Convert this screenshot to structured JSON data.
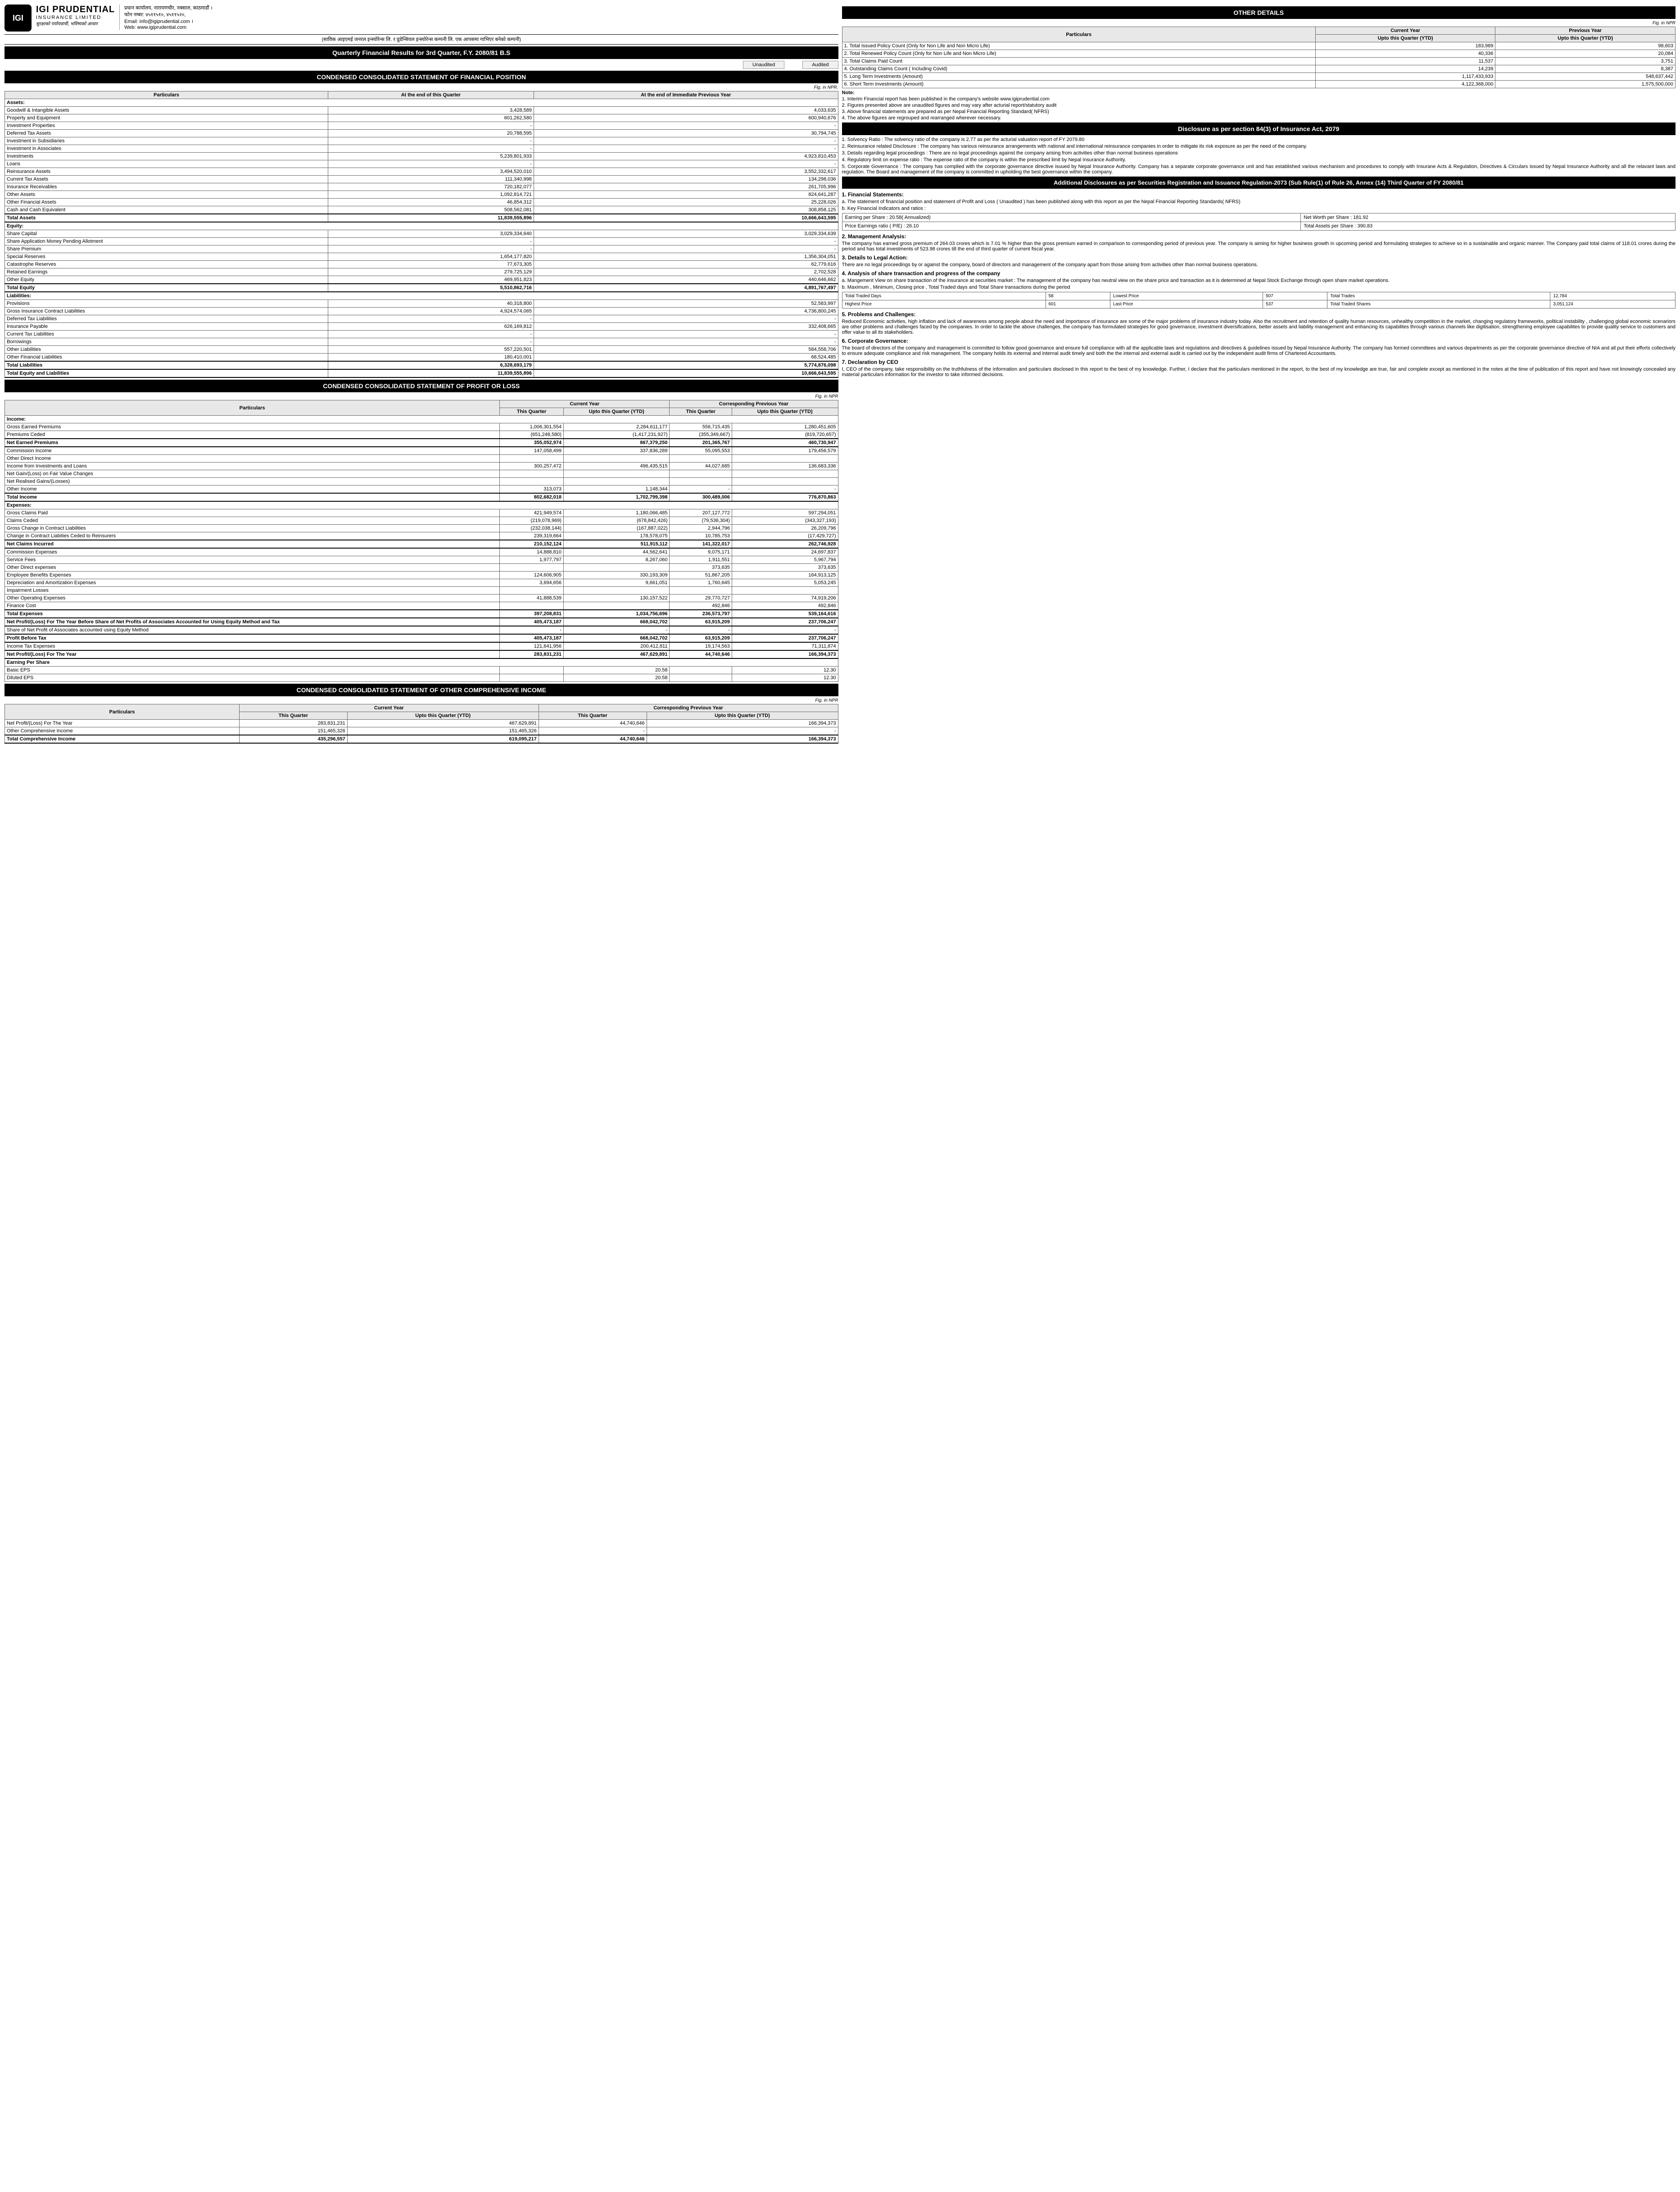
{
  "company": {
    "name": "IGI PRUDENTIAL",
    "sub": "INSURANCE LIMITED",
    "tagline": "सुरक्षाको पर्यायवाची, भविष्यको आधार",
    "logo": "IGI"
  },
  "contact": {
    "l1": "प्रधान कार्यालय, नारायणचौर, नक्साल, काठमाडौं ।",
    "l2": "फोन नम्बर: ४५११५१०, ४५११५२०,",
    "l3": "Email: info@igiprudential.com ।",
    "l4": "Web: www.igiprudential.com"
  },
  "merger": "(साविक आइएमई जनरल इन्स्योरेन्स लि. र प्रुडेन्सियल इन्स्योरेन्स कम्पनी लि. एक आपसमा गाभिएर बनेको कम्पनी)",
  "mainTitle": "Quarterly Financial Results for 3rd Quarter, F.Y. 2080/81 B.S",
  "audit": {
    "u": "Unaudited",
    "a": "Audited"
  },
  "fp": {
    "title": "CONDENSED CONSOLIDATED STATEMENT OF FINANCIAL POSITION",
    "fig": "Fig. in NPR.",
    "h": [
      "Particulars",
      "At the end of this Quarter",
      "At the end of Immediate Previous Year"
    ],
    "sections": [
      {
        "h": "Assets:",
        "rows": [
          [
            "Goodwill & Intangible Assets",
            "3,428,589",
            "4,033,635"
          ],
          [
            "Property and Equipment",
            "601,262,580",
            "600,940,676"
          ],
          [
            "Investment Properties",
            "-",
            "-"
          ],
          [
            "Deferred Tax Assets",
            "20,788,595",
            "30,794,745"
          ],
          [
            "Investment in Subsidiaries",
            "-",
            "-"
          ],
          [
            "Investment in Associates",
            "-",
            "-"
          ],
          [
            "Investments",
            "5,239,801,933",
            "4,923,810,453"
          ],
          [
            "Loans",
            "-",
            "-"
          ],
          [
            "Reinsurance Assets",
            "3,494,520,010",
            "3,552,332,617"
          ],
          [
            "Current Tax Assets",
            "111,340,998",
            "134,298,036"
          ],
          [
            "Insurance Receivables",
            "720,182,077",
            "261,705,996"
          ],
          [
            "Other Assets",
            "1,092,814,721",
            "824,641,287"
          ],
          [
            "Other Financial Assets",
            "46,854,312",
            "25,228,026"
          ],
          [
            "Cash and Cash Equivalent",
            "508,562,081",
            "308,858,125"
          ]
        ],
        "total": [
          "Total Assets",
          "11,839,555,896",
          "10,666,643,595"
        ]
      },
      {
        "h": "Equity:",
        "rows": [
          [
            "Share Capital",
            "3,029,334,640",
            "3,029,334,639"
          ],
          [
            "Share Application Money Pending Allotment",
            "-",
            "-"
          ],
          [
            "Share Premium",
            "-",
            "-"
          ],
          [
            "Special Reserves",
            "1,654,177,820",
            "1,356,304,051"
          ],
          [
            "Catastrophe Reserves",
            "77,673,305",
            "62,779,616"
          ],
          [
            "Retained Earnings",
            "279,725,129",
            "2,702,528"
          ],
          [
            "Other Equity",
            "469,951,823",
            "440,646,662"
          ]
        ],
        "total": [
          "Total Equity",
          "5,510,862,716",
          "4,891,767,497"
        ]
      },
      {
        "h": "Liabilities:",
        "rows": [
          [
            "Provisions",
            "40,318,800",
            "52,583,997"
          ],
          [
            "Gross Insurance Contract Liabilities",
            "4,924,574,065",
            "4,736,800,245"
          ],
          [
            "Deferred Tax Liabilities",
            "-",
            "-"
          ],
          [
            "Insurance Payable",
            "626,169,812",
            "332,408,665"
          ],
          [
            "Current Tax Liabilities",
            "-",
            "-"
          ],
          [
            "Borrowings",
            "-",
            "-"
          ],
          [
            "Other Liabilities",
            "557,220,501",
            "584,558,706"
          ],
          [
            "Other Financial Liabilities",
            "180,410,001",
            "68,524,485"
          ]
        ],
        "total": [
          "Total Liabilities",
          "6,328,693,179",
          "5,774,876,098"
        ]
      }
    ],
    "grand": [
      "Total Equity and Liabilities",
      "11,839,555,896",
      "10,666,643,595"
    ]
  },
  "pl": {
    "title": "CONDENSED CONSOLIDATED STATEMENT OF PROFIT OR LOSS",
    "fig": "Fig. in NPR",
    "h1": [
      "Particulars",
      "Current Year",
      "Corresponding Previous Year"
    ],
    "h2": [
      "This Quarter",
      "Upto this Quarter (YTD)",
      "This Quarter",
      "Upto this Quarter (YTD)"
    ],
    "sections": [
      {
        "h": "Income:",
        "rows": [
          [
            "Gross Earned Premiums",
            "1,006,301,554",
            "2,284,611,177",
            "556,715,435",
            "1,280,451,605"
          ],
          [
            "Premiums Ceded",
            "(651,248,580)",
            "(1,417,231,927)",
            "(355,349,667)",
            "(819,720,657)"
          ]
        ],
        "sub": [
          "Net Earned Premiums",
          "355,052,974",
          "867,379,250",
          "201,365,767",
          "460,730,947"
        ],
        "rows2": [
          [
            "Commission Income",
            "147,058,499",
            "337,836,289",
            "55,095,553",
            "179,456,579"
          ],
          [
            "Other Direct Income",
            "",
            "",
            "",
            ""
          ],
          [
            "Income from Investments and Loans",
            "300,257,472",
            "496,435,515",
            "44,027,685",
            "136,683,336"
          ],
          [
            "Net Gain/(Loss) on Fair Value Changes",
            "",
            "",
            "",
            ""
          ],
          [
            "Net Realised Gains/(Losses)",
            "",
            "",
            "",
            ""
          ],
          [
            "Other Income",
            "313,073",
            "1,148,344",
            "-",
            "-"
          ]
        ],
        "total": [
          "Total Income",
          "802,682,018",
          "1,702,799,398",
          "300,489,006",
          "776,870,863"
        ]
      },
      {
        "h": "Expenses:",
        "rows": [
          [
            "Gross Claims Paid",
            "421,949,574",
            "1,180,066,485",
            "207,127,772",
            "597,294,051"
          ],
          [
            "Claims Ceded",
            "(219,078,969)",
            "(678,842,426)",
            "(79,536,304)",
            "(343,327,193)"
          ],
          [
            "Gross Change in Contract Liabilities",
            "(232,038,144)",
            "(167,887,022)",
            "2,944,796",
            "26,209,796"
          ],
          [
            "Change in Contract Liabities Ceded to Reinsurers",
            "239,319,664",
            "178,578,075",
            "10,785,753",
            "(17,429,727)"
          ]
        ],
        "sub": [
          "Net Claims Incurred",
          "210,152,124",
          "511,915,112",
          "141,322,017",
          "262,746,928"
        ],
        "rows2": [
          [
            "Commission Expenses",
            "14,888,810",
            "44,562,641",
            "9,075,171",
            "24,697,837"
          ],
          [
            "Service Fees",
            "1,977,797",
            "8,267,060",
            "1,911,551",
            "5,967,794"
          ],
          [
            "Other Direct expenses",
            "",
            "",
            "373,635",
            "373,635"
          ],
          [
            "Employee Benefits Expenses",
            "124,606,905",
            "330,193,309",
            "51,867,205",
            "164,913,125"
          ],
          [
            "Depreciation and Amortization Expenses",
            "3,694,656",
            "9,661,051",
            "1,760,645",
            "5,053,245"
          ],
          [
            "Impairment Losses",
            "",
            "",
            "",
            ""
          ],
          [
            "Other Operating Expenses",
            "41,888,539",
            "130,157,522",
            "29,770,727",
            "74,919,206"
          ],
          [
            "Finance Cost",
            "",
            "",
            "492,846",
            "492,846"
          ]
        ],
        "total": [
          "Total Expenses",
          "397,208,831",
          "1,034,756,696",
          "236,573,797",
          "539,164,616"
        ]
      }
    ],
    "pbta": [
      "Net Profit/(Loss) For The Year Before Share of Net Profits of Associates Accounted for Using Equity Method and Tax",
      "405,473,187",
      "668,042,702",
      "63,915,209",
      "237,706,247"
    ],
    "assoc": [
      "Share of Net Profit of Associates accounted using Equity Method",
      "-",
      "-",
      "-",
      "-"
    ],
    "pbt": [
      "Profit Before Tax",
      "405,473,187",
      "668,042,702",
      "63,915,209",
      "237,706,247"
    ],
    "tax": [
      "Income Tax Expenses",
      "121,641,956",
      "200,412,811",
      "19,174,563",
      "71,311,874"
    ],
    "np": [
      "Net Profit/(Loss) For The Year",
      "283,831,231",
      "467,629,891",
      "44,740,646",
      "166,394,373"
    ],
    "eps": {
      "h": "Earning Per Share",
      "rows": [
        [
          "Basic EPS",
          "",
          "20.58",
          "",
          "12.30"
        ],
        [
          "Diluted EPS",
          "",
          "20.58",
          "",
          "12.30"
        ]
      ]
    }
  },
  "oci": {
    "title": "CONDENSED CONSOLIDATED STATEMENT OF OTHER COMPREHENSIVE INCOME",
    "fig": "Fig. in NPR",
    "rows": [
      [
        "Net Profit/(Loss) For The Year",
        "283,831,231",
        "467,629,891",
        "44,740,646",
        "166,394,373"
      ],
      [
        "Other Comprehensive Income",
        "151,465,326",
        "151,465,326",
        "-",
        "-"
      ]
    ],
    "total": [
      "Total Comprehensive Income",
      "435,296,557",
      "619,095,217",
      "44,740,646",
      "166,394,373"
    ]
  },
  "od": {
    "title": "OTHER DETAILS",
    "fig": "Fig. in NPR",
    "h": [
      "Particulars",
      "Current Year",
      "Previous Year"
    ],
    "h2": [
      "Upto this Quarter (YTD)",
      "Upto this Quarter (YTD)"
    ],
    "rows": [
      [
        "1. Total Issued Policy Count (Only for Non Life and Non Micro Life)",
        "183,989",
        "98,603"
      ],
      [
        "2. Total Renewed Policy Count (Only for Non Life and Non Micro Life)",
        "40,336",
        "20,084"
      ],
      [
        "3. Total Claims Paid Count",
        "11,537",
        "3,751"
      ],
      [
        "4. Outstanding Claims Count ( Including Covid)",
        "14,239",
        "8,387"
      ],
      [
        "5. Long Term Investments (Amount)",
        "1,117,433,933",
        "548,637,442"
      ],
      [
        "6. Short Term Investments (Amount)",
        "4,122,368,000",
        "1,575,500,000"
      ]
    ]
  },
  "notes": {
    "h": "Note:",
    "items": [
      "1. Interim Financial report has been published in the company's website www.igiprudential.com",
      "2. Figures presented above are unaudited figures and may vary after acturial report/statutory audit",
      "3. Above financial statements are prepared as per Nepal Financial Reporting Standard( NFRS)",
      "4. The above figures are regrouped and rearranged wherever necessary."
    ]
  },
  "d84": {
    "title": "Disclosure as per section 84(3) of Insurance Act, 2079",
    "items": [
      "1. Solvency Ratio : The solvency ratio of the company is 2.77 as per the acturial valuation report of FY 2079.80",
      "2. Reinsurance related Disclosure : The company has various reinsurance arrangements with national and international reinsurance companies in order to mitigate its risk exposure as per the need of the company.",
      "3. Details regarding legal proceedings : There are no legal proceedings against the company arising from activities other than normal business operations",
      "4. Regulatory limit on expense ratio : The expense ratio of the company is within the prescribed limit by Nepal Insurance Authority.",
      "5. Corporate Governance : The company has complied with the corporate governance directive isuued by Nepal Insurance Authority. Company has a separate corporate governance unit and has established various mechanism and procedures to comply with Insurane Acts & Regulation, Directives & Circulars issued by Nepal Insurance Authority and all the relavant laws and regulation. The Board and management of the company is committed in upholding the best governance within the company."
    ]
  },
  "ad": {
    "title": "Additional Disclosures as per Securities Registration and Issuance Regulation-2073 (Sub Rule(1) of Rule 26, Annex (14) Third Quarter of FY 2080/81",
    "s1": {
      "h": "1. Financial Statements:",
      "a": "a. The statement of financial position and statement of Profit and Loss ( Unaudited ) has been published along with this report as per the Nepal Financial Reporting Standards( NFRS)",
      "b": "b. Key Financial Indicators and ratios :",
      "kfi": [
        [
          "Earning per Share : 20.58( Annualized)",
          "Net Worth per Share : 181.92"
        ],
        [
          "Price Earnings ratio ( P/E) : 26.10",
          "Total Assets per Share : 390.83"
        ]
      ]
    },
    "s2": {
      "h": "2. Management Analysis:",
      "p": "The company has earned gross premium of 264.03 crores which is 7.01 % higher than the gross premium earned in comparison to corresponding period of previous year. The company is aiming for higher business growth in upcoming period and formulating strategies to achieve so in a sustainable and organic manner. The Company paid total claims of 118.01 crores during the period and has total investments of 523.98 crores till the end of third quarter of current fiscal year."
    },
    "s3": {
      "h": "3. Details to Legal Action:",
      "p": "There are no legal proceedings by or against the company, board of directors and management of the company apart from those arising from activities other than normal business operations."
    },
    "s4": {
      "h": "4. Analysis of share transaction and progress of the company",
      "a": "a. Mangement View on share transaction of the insurance at securities market : The management of the company has neutral view on the share price and transaction as it is determined at Nepal Stock Exchange through open share market operations.",
      "b": "b. Maximum , Minimum, Closing price , Total Traded days and Total Share transactions during the period",
      "t": [
        [
          "Total Traded Days",
          "58",
          "Lowest Price",
          "507",
          "Total Trades",
          "12,784"
        ],
        [
          "Highest Price",
          "601",
          "Last Price",
          "537",
          "Total Traded Shares",
          "3,051,124"
        ]
      ]
    },
    "s5": {
      "h": "5. Problems and Challenges:",
      "p": "Reduced Economic activities, high inflation and lack of awareness among people about the need and importance of insurance are some of the major problems of insurance industry today. Also the recruitment and retention of quality human resources, unhealthy competition in the market, changing regulatory frameworks, political instability , challenging global economic scenariors are other problems and challenges faced by the companies. In order to tackle the above challenges, the company has formulated strategies for good governance, investment diversifications, better assets and liability management and enhancing its capabilites through various channels like digitisation, strengthening employee capabilites to provide quality service to customers and offer value to all its stakeholders."
    },
    "s6": {
      "h": "6. Corporate Governance:",
      "p": "The board of directors of the company and management is committed to follow good governance and ensure full compliance with all the applicable laws and regulations and directives & guidelines issued by Nepal Insurance Authority. The company has formed committees and various departments as per the corporate governance directive of NIA and all put their efforts collectively to ensure adequate compliance and risk management. The company holds its external and internal audit timely and both the the internal and external audit is carried out by the independent audit firms of Chartered Accountants."
    },
    "s7": {
      "h": "7. Declaration by CEO",
      "p": "I, CEO of the company, take responsibility on the truthfulness of the information and particulars disclosed in this report to the best of my knowledge. Further, I declare that the particulars mentioned in the report, to the best of my knowledge are true, fair and complete except as mentioned in the notes at the time of publication of this report and have not knowingly concealed any material particulars information for the investor to take informed decisions."
    }
  }
}
